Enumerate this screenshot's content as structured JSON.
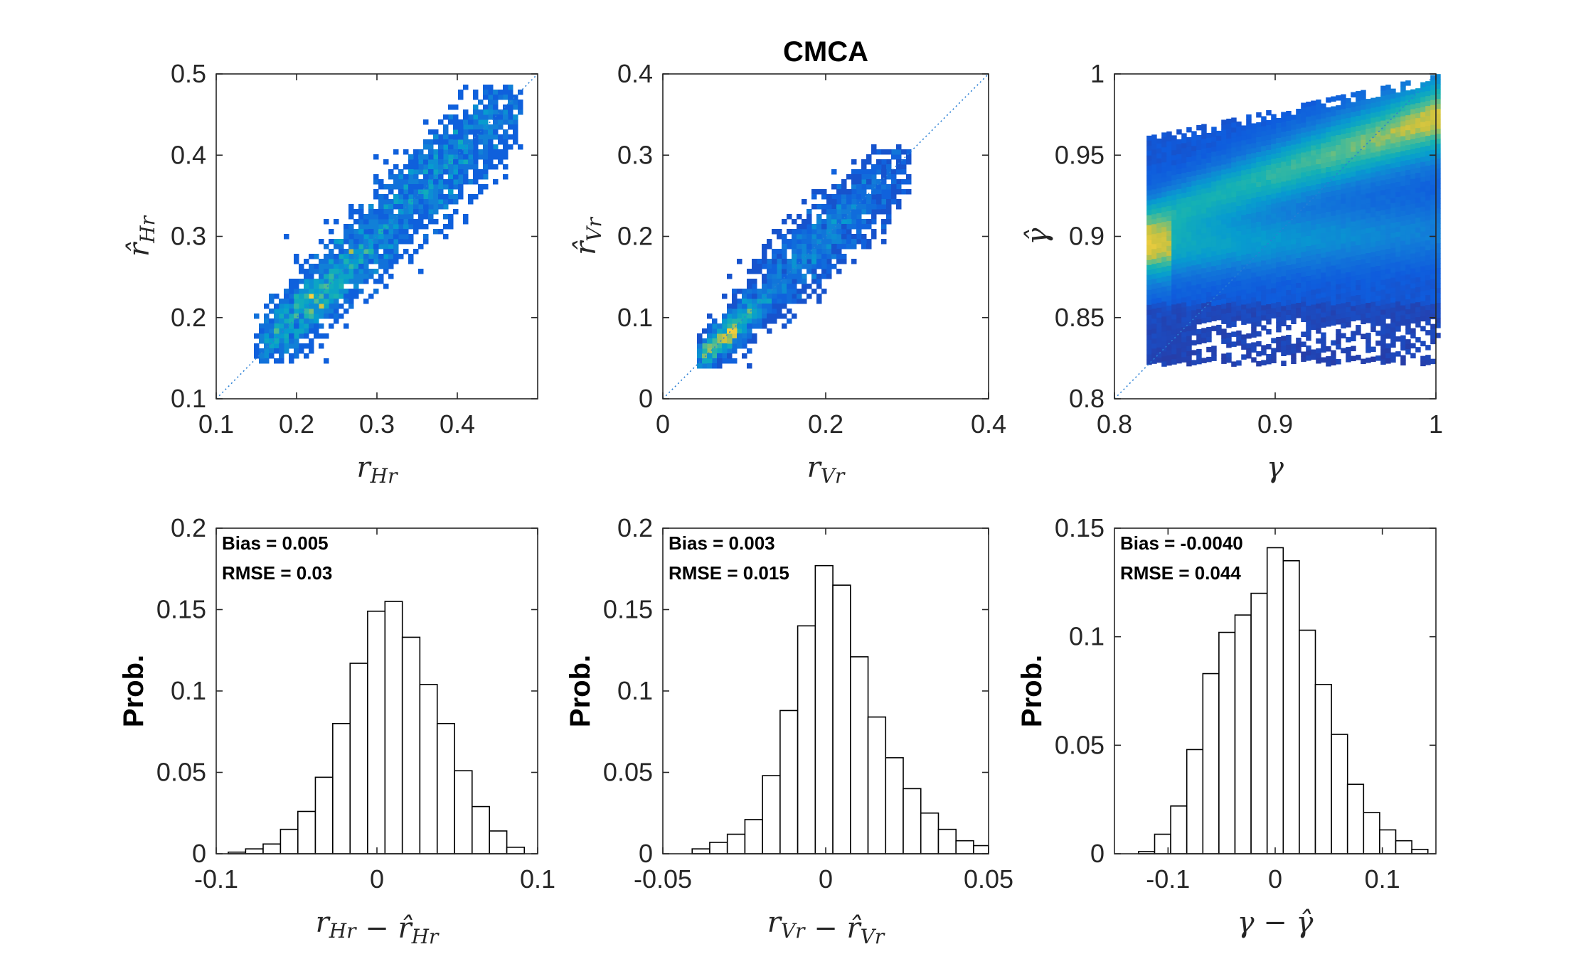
{
  "colors": {
    "low": "#3b2a8c",
    "mid": "#1e9ad6",
    "high": "#f7c93a",
    "axis": "#262626",
    "diag": "#2a7fd4"
  },
  "chart_data": [
    {
      "type": "scatter",
      "panel": "top-left",
      "title": "",
      "xlabel": "r_Hr",
      "ylabel": "r̂_Hr",
      "xlabel_text": "r",
      "xlabel_sub": "Hr",
      "ylabel_text": "r̂",
      "ylabel_sub": "Hr",
      "xlim": [
        0.1,
        0.5
      ],
      "ylim": [
        0.1,
        0.5
      ],
      "xticks": [
        0.1,
        0.2,
        0.3,
        0.4
      ],
      "yticks": [
        0.1,
        0.2,
        0.3,
        0.4,
        0.5
      ],
      "xtick_labels": [
        "0.1",
        "0.2",
        "0.3",
        "0.4"
      ],
      "ytick_labels": [
        "0.1",
        "0.2",
        "0.3",
        "0.4",
        "0.5"
      ],
      "density_clusters": [
        {
          "x": 0.22,
          "y": 0.215,
          "spread": 0.035,
          "weight": 0.7
        },
        {
          "x": 0.38,
          "y": 0.375,
          "spread": 0.05,
          "weight": 1.0
        }
      ],
      "data_range": [
        0.15,
        0.48
      ],
      "reference_line": "y = x"
    },
    {
      "type": "scatter",
      "panel": "top-center",
      "title": "CMCA",
      "xlabel": "r_Vr",
      "ylabel": "r̂_Vr",
      "xlabel_text": "r",
      "xlabel_sub": "Vr",
      "ylabel_text": "r̂",
      "ylabel_sub": "Vr",
      "xlim": [
        0,
        0.4
      ],
      "ylim": [
        0,
        0.4
      ],
      "xticks": [
        0,
        0.2,
        0.4
      ],
      "yticks": [
        0,
        0.1,
        0.2,
        0.3,
        0.4
      ],
      "xtick_labels": [
        "0",
        "0.2",
        "0.4"
      ],
      "ytick_labels": [
        "0",
        "0.1",
        "0.2",
        "0.3",
        "0.4"
      ],
      "density_clusters": [
        {
          "x": 0.075,
          "y": 0.075,
          "spread": 0.02,
          "weight": 0.8
        },
        {
          "x": 0.2,
          "y": 0.2,
          "spread": 0.04,
          "weight": 0.9
        }
      ],
      "data_range": [
        0.045,
        0.305
      ],
      "reference_line": "y = x"
    },
    {
      "type": "scatter",
      "panel": "top-right",
      "title": "",
      "xlabel": "γ",
      "ylabel": "γ̂",
      "xlabel_text": "γ",
      "xlabel_sub": "",
      "ylabel_text": "γ̂",
      "ylabel_sub": "",
      "xlim": [
        0.8,
        1
      ],
      "ylim": [
        0.8,
        1
      ],
      "xticks": [
        0.8,
        0.9,
        1
      ],
      "yticks": [
        0.8,
        0.85,
        0.9,
        0.95,
        1
      ],
      "xtick_labels": [
        "0.8",
        "0.9",
        "1"
      ],
      "ytick_labels": [
        "0.8",
        "0.85",
        "0.9",
        "0.95",
        "1"
      ],
      "data_x_range": [
        0.82,
        1.0
      ],
      "data_y_range": [
        0.823,
        1.0
      ],
      "bands": [
        {
          "x0": 0.82,
          "y0": 0.893,
          "x1": 1.0,
          "y1": 0.905,
          "note": "descending lower-band"
        },
        {
          "x0": 0.82,
          "y0": 0.913,
          "x1": 1.0,
          "y1": 0.975,
          "note": "ascending upper-band"
        }
      ],
      "reference_line": "y = x"
    },
    {
      "type": "bar",
      "panel": "bottom-left",
      "xlabel": "r_Hr − r̂_Hr",
      "ylabel": "Prob.",
      "xlabel_text": "r",
      "xlabel_sub": "Hr",
      "xlabel_minus": "−",
      "xlabel_text2": "r̂",
      "xlabel_sub2": "Hr",
      "xlim": [
        -0.1,
        0.1
      ],
      "ylim": [
        0,
        0.2
      ],
      "xticks": [
        -0.1,
        0,
        0.1
      ],
      "yticks": [
        0,
        0.05,
        0.1,
        0.15,
        0.2
      ],
      "xtick_labels": [
        "-0.1",
        "0",
        "0.1"
      ],
      "ytick_labels": [
        "0",
        "0.05",
        "0.1",
        "0.15",
        "0.2"
      ],
      "bin_edges": [
        -0.0925,
        -0.0817,
        -0.0708,
        -0.06,
        -0.0492,
        -0.0383,
        -0.0275,
        -0.0167,
        -0.0058,
        0.005,
        0.0158,
        0.0267,
        0.0375,
        0.0483,
        0.0592,
        0.07,
        0.0808,
        0.0917
      ],
      "values": [
        0.001,
        0.003,
        0.006,
        0.015,
        0.026,
        0.047,
        0.08,
        0.117,
        0.149,
        0.155,
        0.133,
        0.104,
        0.08,
        0.051,
        0.029,
        0.014,
        0.004
      ],
      "annotations": [
        "Bias = 0.005",
        "RMSE = 0.03"
      ]
    },
    {
      "type": "bar",
      "panel": "bottom-center",
      "xlabel": "r_Vr − r̂_Vr",
      "ylabel": "Prob.",
      "xlabel_text": "r",
      "xlabel_sub": "Vr",
      "xlabel_minus": "−",
      "xlabel_text2": "r̂",
      "xlabel_sub2": "Vr",
      "xlim": [
        -0.05,
        0.05
      ],
      "ylim": [
        0,
        0.2
      ],
      "xticks": [
        -0.05,
        0,
        0.05
      ],
      "yticks": [
        0,
        0.05,
        0.1,
        0.15,
        0.2
      ],
      "xtick_labels": [
        "-0.05",
        "0",
        "0.05"
      ],
      "ytick_labels": [
        "0",
        "0.05",
        "0.1",
        "0.15",
        "0.2"
      ],
      "bin_edges": [
        -0.041,
        -0.0356,
        -0.0302,
        -0.0248,
        -0.0194,
        -0.014,
        -0.0086,
        -0.0032,
        0.0022,
        0.0076,
        0.013,
        0.0184,
        0.0238,
        0.0292,
        0.0346,
        0.04,
        0.0454,
        0.05
      ],
      "values": [
        0.003,
        0.007,
        0.012,
        0.021,
        0.048,
        0.088,
        0.14,
        0.177,
        0.165,
        0.121,
        0.084,
        0.059,
        0.04,
        0.025,
        0.015,
        0.008,
        0.005
      ],
      "annotations": [
        "Bias = 0.003",
        "RMSE = 0.015"
      ]
    },
    {
      "type": "bar",
      "panel": "bottom-right",
      "xlabel": "γ − γ̂",
      "ylabel": "Prob.",
      "xlabel_text": "γ",
      "xlabel_sub": "",
      "xlabel_minus": "−",
      "xlabel_text2": "γ̂",
      "xlabel_sub2": "",
      "xlim": [
        -0.15,
        0.15
      ],
      "ylim": [
        0,
        0.15
      ],
      "xticks": [
        -0.1,
        0,
        0.1
      ],
      "yticks": [
        0,
        0.05,
        0.1,
        0.15
      ],
      "xtick_labels": [
        "-0.1",
        "0",
        "0.1"
      ],
      "ytick_labels": [
        "0",
        "0.05",
        "0.1",
        "0.15"
      ],
      "bin_edges": [
        -0.1275,
        -0.1125,
        -0.0975,
        -0.0825,
        -0.0675,
        -0.0525,
        -0.0375,
        -0.0225,
        -0.0075,
        0.0075,
        0.0225,
        0.0375,
        0.0525,
        0.0675,
        0.0825,
        0.0975,
        0.1125,
        0.1275,
        0.1425
      ],
      "values": [
        0.001,
        0.009,
        0.022,
        0.048,
        0.083,
        0.102,
        0.11,
        0.12,
        0.141,
        0.135,
        0.103,
        0.078,
        0.055,
        0.032,
        0.019,
        0.011,
        0.006,
        0.002
      ],
      "annotations": [
        "Bias = -0.0040",
        "RMSE = 0.044"
      ]
    }
  ]
}
